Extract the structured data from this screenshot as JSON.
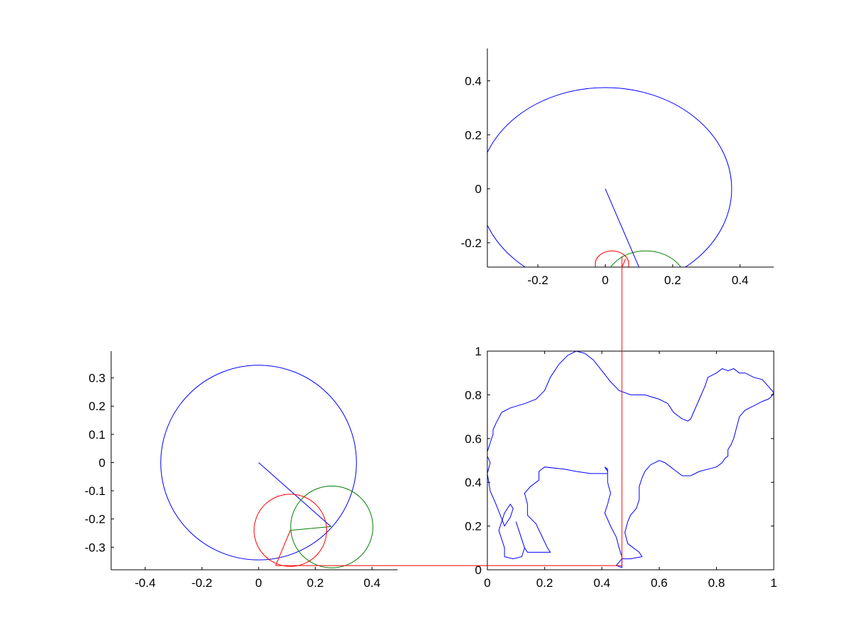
{
  "colors": {
    "blue": "#0000ff",
    "red": "#ff0000",
    "green": "#008000",
    "axes": "#000000",
    "background": "#ffffff"
  },
  "chart_data": [
    {
      "id": "top-right",
      "type": "line",
      "title": "",
      "xlabel": "",
      "ylabel": "",
      "xlim": [
        -0.35,
        0.5
      ],
      "ylim": [
        -0.29,
        0.52
      ],
      "xticks": [
        -0.2,
        0,
        0.2,
        0.4
      ],
      "xtick_labels": [
        "-0.2",
        "0",
        "0.2",
        "0.4"
      ],
      "yticks": [
        -0.2,
        0,
        0.2,
        0.4
      ],
      "ytick_labels": [
        "-0.2",
        "0",
        "0.2",
        "0.4"
      ],
      "box": false,
      "series": [
        {
          "kind": "circle",
          "color": "blue",
          "cx": 0,
          "cy": 0,
          "r": 0.375
        },
        {
          "kind": "polyline",
          "color": "blue",
          "x": [
            0,
            0.1
          ],
          "y": [
            0,
            -0.29
          ]
        },
        {
          "kind": "circle",
          "color": "red",
          "cx": 0.02,
          "cy": -0.28,
          "r": 0.05
        },
        {
          "kind": "circle",
          "color": "green",
          "cx": 0.12,
          "cy": -0.35,
          "r": 0.12
        },
        {
          "kind": "polyline",
          "color": "red",
          "x": [
            0.06,
            0.05
          ],
          "y": [
            -0.26,
            -0.29
          ]
        }
      ]
    },
    {
      "id": "bottom-left",
      "type": "line",
      "title": "",
      "xlabel": "",
      "ylabel": "",
      "xlim": [
        -0.52,
        0.49
      ],
      "ylim": [
        -0.38,
        0.395
      ],
      "xticks": [
        -0.4,
        -0.2,
        0,
        0.2,
        0.4
      ],
      "xtick_labels": [
        "-0.4",
        "-0.2",
        "0",
        "0.2",
        "0.4"
      ],
      "yticks": [
        -0.3,
        -0.2,
        -0.1,
        0,
        0.1,
        0.2,
        0.3
      ],
      "ytick_labels": [
        "-0.3",
        "-0.2",
        "-0.1",
        "0",
        "0.1",
        "0.2",
        "0.3"
      ],
      "box": false,
      "series": [
        {
          "kind": "circle",
          "color": "blue",
          "cx": 0,
          "cy": 0,
          "r": 0.345
        },
        {
          "kind": "polyline",
          "color": "blue",
          "x": [
            0,
            0.255
          ],
          "y": [
            0,
            -0.227
          ]
        },
        {
          "kind": "circle",
          "color": "green",
          "cx": 0.258,
          "cy": -0.228,
          "r": 0.145
        },
        {
          "kind": "polyline",
          "color": "green",
          "x": [
            0.255,
            0.115
          ],
          "y": [
            -0.227,
            -0.24
          ]
        },
        {
          "kind": "circle",
          "color": "red",
          "cx": 0.112,
          "cy": -0.24,
          "r": 0.128
        },
        {
          "kind": "polyline",
          "color": "red",
          "x": [
            0.112,
            0.06
          ],
          "y": [
            -0.24,
            -0.365
          ]
        }
      ]
    },
    {
      "id": "camel",
      "type": "line",
      "title": "",
      "xlabel": "",
      "ylabel": "",
      "xlim": [
        0,
        1
      ],
      "ylim": [
        0,
        1
      ],
      "xticks": [
        0,
        0.2,
        0.4,
        0.6,
        0.8,
        1
      ],
      "xtick_labels": [
        "0",
        "0.2",
        "0.4",
        "0.6",
        "0.8",
        "1"
      ],
      "yticks": [
        0,
        0.2,
        0.4,
        0.6,
        0.8,
        1
      ],
      "ytick_labels": [
        "0",
        "0.2",
        "0.4",
        "0.6",
        "0.8",
        "1"
      ],
      "box": true,
      "series": [
        {
          "kind": "polyline",
          "color": "blue",
          "name": "camel outline",
          "x": [
            0.05,
            0.08,
            0.13,
            0.17,
            0.2,
            0.22,
            0.25,
            0.28,
            0.31,
            0.34,
            0.37,
            0.4,
            0.43,
            0.46,
            0.5,
            0.55,
            0.6,
            0.63,
            0.65,
            0.68,
            0.7,
            0.71,
            0.72,
            0.74,
            0.76,
            0.77,
            0.8,
            0.82,
            0.84,
            0.86,
            0.88,
            0.9,
            0.93,
            0.96,
            0.98,
            1.0,
            0.99,
            0.98,
            0.96,
            0.93,
            0.9,
            0.88,
            0.87,
            0.86,
            0.85,
            0.84,
            0.84,
            0.83,
            0.82,
            0.8,
            0.77,
            0.74,
            0.71,
            0.68,
            0.66,
            0.64,
            0.62,
            0.6,
            0.57,
            0.55,
            0.54,
            0.53,
            0.53,
            0.52,
            0.5,
            0.49,
            0.48,
            0.49,
            0.51,
            0.53,
            0.54,
            0.5,
            0.47,
            0.45,
            0.47,
            0.47,
            0.46,
            0.45,
            0.43,
            0.41,
            0.42,
            0.43,
            0.42,
            0.42,
            0.41,
            0.42,
            0.42,
            0.41,
            0.4,
            0.36,
            0.31,
            0.27,
            0.2,
            0.18,
            0.18,
            0.15,
            0.13,
            0.14,
            0.14,
            0.17,
            0.21,
            0.22,
            0.18,
            0.14,
            0.13,
            0.12,
            0.11,
            0.1,
            0.11,
            0.13,
            0.12,
            0.09,
            0.06,
            0.06,
            0.04,
            0.06,
            0.08,
            0.09,
            0.08,
            0.06,
            0.03,
            0.01,
            0.0,
            0.01,
            0.0,
            0.0,
            0.01,
            0.02,
            0.02,
            0.03,
            0.05
          ],
          "y": [
            0.72,
            0.74,
            0.76,
            0.78,
            0.82,
            0.88,
            0.94,
            0.98,
            1.0,
            0.99,
            0.96,
            0.91,
            0.86,
            0.82,
            0.8,
            0.8,
            0.78,
            0.76,
            0.72,
            0.69,
            0.68,
            0.69,
            0.72,
            0.78,
            0.84,
            0.88,
            0.9,
            0.92,
            0.91,
            0.92,
            0.9,
            0.9,
            0.88,
            0.87,
            0.84,
            0.81,
            0.79,
            0.78,
            0.77,
            0.75,
            0.73,
            0.7,
            0.65,
            0.6,
            0.57,
            0.55,
            0.52,
            0.51,
            0.49,
            0.47,
            0.46,
            0.45,
            0.43,
            0.43,
            0.45,
            0.47,
            0.49,
            0.5,
            0.48,
            0.45,
            0.42,
            0.38,
            0.32,
            0.28,
            0.25,
            0.22,
            0.17,
            0.12,
            0.1,
            0.08,
            0.06,
            0.05,
            0.05,
            0.02,
            0.01,
            0.06,
            0.1,
            0.15,
            0.2,
            0.26,
            0.3,
            0.35,
            0.4,
            0.46,
            0.47,
            0.45,
            0.44,
            0.44,
            0.44,
            0.44,
            0.45,
            0.46,
            0.47,
            0.45,
            0.41,
            0.38,
            0.35,
            0.3,
            0.25,
            0.21,
            0.1,
            0.08,
            0.08,
            0.08,
            0.1,
            0.14,
            0.18,
            0.22,
            0.18,
            0.1,
            0.06,
            0.05,
            0.06,
            0.1,
            0.18,
            0.26,
            0.3,
            0.28,
            0.24,
            0.2,
            0.3,
            0.36,
            0.44,
            0.49,
            0.52,
            0.54,
            0.58,
            0.62,
            0.64,
            0.67,
            0.72
          ]
        }
      ]
    },
    {
      "id": "connectors",
      "type": "line",
      "color": "red",
      "description_free": true,
      "series": [
        {
          "kind": "polyline",
          "color": "red",
          "from_axes": "bottom-left",
          "to_axes": "camel",
          "x_from": 0.06,
          "y_from": -0.365,
          "x_to": 0.47,
          "y_to": 0.02
        },
        {
          "kind": "polyline",
          "color": "red",
          "from_axes": "camel",
          "to_axes": "top-right",
          "x_from": 0.47,
          "y_from": 0.02,
          "x_to": 0.047,
          "y_to": -0.25
        }
      ]
    }
  ]
}
